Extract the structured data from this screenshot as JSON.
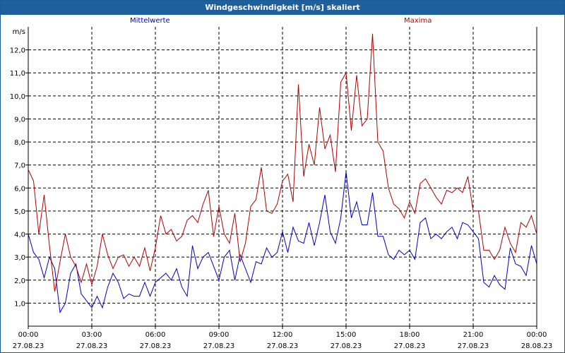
{
  "window": {
    "title": "Windgeschwindigkeit [m/s] skaliert"
  },
  "chart_data": {
    "type": "line",
    "title": "Windgeschwindigkeit [m/s] skaliert",
    "ylabel": "m/s",
    "ylim": [
      0,
      13.0
    ],
    "xlim_hours": [
      0,
      24
    ],
    "y_ticks": [
      "1,0",
      "2,0",
      "3,0",
      "4,0",
      "5,0",
      "6,0",
      "7,0",
      "8,0",
      "9,0",
      "10,0",
      "11,0",
      "12,0"
    ],
    "x_ticks": [
      {
        "time": "00:00",
        "date": "27.08.23"
      },
      {
        "time": "03:00",
        "date": "27.08.23"
      },
      {
        "time": "06:00",
        "date": "27.08.23"
      },
      {
        "time": "09:00",
        "date": "27.08.23"
      },
      {
        "time": "12:00",
        "date": "27.08.23"
      },
      {
        "time": "15:00",
        "date": "27.08.23"
      },
      {
        "time": "18:00",
        "date": "27.08.23"
      },
      {
        "time": "21:00",
        "date": "27.08.23"
      },
      {
        "time": "00:00",
        "date": "28.08.23"
      }
    ],
    "grid": true,
    "series": [
      {
        "name": "Mittelwerte",
        "color": "#0000c0",
        "x": [
          0,
          0.25,
          0.5,
          0.75,
          1.0,
          1.25,
          1.5,
          1.75,
          2.0,
          2.25,
          2.5,
          2.75,
          3.0,
          3.25,
          3.5,
          3.75,
          4.0,
          4.25,
          4.5,
          4.75,
          5.0,
          5.25,
          5.5,
          5.75,
          6.0,
          6.25,
          6.5,
          6.75,
          7.0,
          7.25,
          7.5,
          7.75,
          8.0,
          8.25,
          8.5,
          8.75,
          9.0,
          9.25,
          9.5,
          9.75,
          10.0,
          10.25,
          10.5,
          10.75,
          11.0,
          11.25,
          11.5,
          11.75,
          12.0,
          12.25,
          12.5,
          12.75,
          13.0,
          13.25,
          13.5,
          13.75,
          14.0,
          14.25,
          14.5,
          14.75,
          15.0,
          15.25,
          15.5,
          15.75,
          16.0,
          16.25,
          16.5,
          16.75,
          17.0,
          17.25,
          17.5,
          17.75,
          18.0,
          18.25,
          18.5,
          18.75,
          19.0,
          19.25,
          19.5,
          19.75,
          20.0,
          20.25,
          20.5,
          20.75,
          21.0,
          21.25,
          21.5,
          21.75,
          22.0,
          22.25,
          22.5,
          22.75,
          23.0,
          23.25,
          23.5,
          23.75,
          24.0
        ],
        "values": [
          4.0,
          3.2,
          2.9,
          2.1,
          3.0,
          2.5,
          0.6,
          1.0,
          2.3,
          2.7,
          1.4,
          1.1,
          0.8,
          1.3,
          0.8,
          1.7,
          2.3,
          1.9,
          1.2,
          1.4,
          1.3,
          1.3,
          1.9,
          1.3,
          1.9,
          2.1,
          2.3,
          2.0,
          2.5,
          1.7,
          1.3,
          3.5,
          2.5,
          3.0,
          3.2,
          2.6,
          2.0,
          3.0,
          3.3,
          2.0,
          3.1,
          2.5,
          1.9,
          2.8,
          2.7,
          3.4,
          3.0,
          3.2,
          4.1,
          3.2,
          4.3,
          3.7,
          3.6,
          4.5,
          3.5,
          4.5,
          5.7,
          4.1,
          3.6,
          4.7,
          6.7,
          4.7,
          5.4,
          4.4,
          4.4,
          5.8,
          3.9,
          3.9,
          3.1,
          2.9,
          3.3,
          3.1,
          3.3,
          2.9,
          4.5,
          4.7,
          3.8,
          4.0,
          3.8,
          4.1,
          4.3,
          3.8,
          4.5,
          4.4,
          4.1,
          3.8,
          1.9,
          1.7,
          2.2,
          1.8,
          1.6,
          3.4,
          2.7,
          2.6,
          2.2,
          3.5,
          2.7
        ]
      },
      {
        "name": "Maxima",
        "color": "#b00000",
        "x": [
          0,
          0.25,
          0.5,
          0.75,
          1.0,
          1.25,
          1.5,
          1.75,
          2.0,
          2.25,
          2.5,
          2.75,
          3.0,
          3.25,
          3.5,
          3.75,
          4.0,
          4.25,
          4.5,
          4.75,
          5.0,
          5.25,
          5.5,
          5.75,
          6.0,
          6.25,
          6.5,
          6.75,
          7.0,
          7.25,
          7.5,
          7.75,
          8.0,
          8.25,
          8.5,
          8.75,
          9.0,
          9.25,
          9.5,
          9.75,
          10.0,
          10.25,
          10.5,
          10.75,
          11.0,
          11.25,
          11.5,
          11.75,
          12.0,
          12.25,
          12.5,
          12.75,
          13.0,
          13.25,
          13.5,
          13.75,
          14.0,
          14.25,
          14.5,
          14.75,
          15.0,
          15.25,
          15.5,
          15.75,
          16.0,
          16.25,
          16.5,
          16.75,
          17.0,
          17.25,
          17.5,
          17.75,
          18.0,
          18.25,
          18.5,
          18.75,
          19.0,
          19.25,
          19.5,
          19.75,
          20.0,
          20.25,
          20.5,
          20.75,
          21.0,
          21.25,
          21.5,
          21.75,
          22.0,
          22.25,
          22.5,
          22.75,
          23.0,
          23.25,
          23.5,
          23.75,
          24.0
        ],
        "values": [
          6.8,
          6.3,
          4.0,
          5.7,
          3.5,
          1.5,
          2.8,
          4.0,
          3.0,
          2.6,
          1.9,
          2.7,
          1.8,
          2.6,
          4.0,
          3.1,
          2.5,
          3.0,
          3.1,
          2.6,
          3.0,
          2.6,
          3.4,
          2.4,
          3.4,
          4.8,
          4.0,
          4.2,
          3.7,
          3.9,
          4.6,
          4.8,
          4.5,
          5.3,
          5.9,
          3.9,
          5.2,
          4.0,
          3.6,
          4.9,
          2.8,
          3.6,
          5.2,
          5.5,
          6.9,
          5.0,
          4.9,
          5.3,
          6.3,
          6.6,
          5.4,
          10.5,
          6.5,
          7.9,
          7.0,
          9.5,
          7.7,
          8.3,
          6.7,
          10.6,
          11.0,
          8.5,
          10.9,
          8.7,
          9.0,
          12.7,
          8.0,
          7.6,
          6.0,
          5.3,
          5.1,
          4.7,
          5.4,
          4.9,
          6.2,
          6.4,
          6.0,
          5.6,
          5.3,
          5.9,
          5.8,
          6.0,
          5.8,
          6.5,
          5.0,
          5.0,
          3.3,
          3.3,
          2.9,
          3.3,
          4.3,
          3.6,
          3.2,
          4.5,
          4.3,
          4.8,
          4.0
        ]
      }
    ]
  }
}
